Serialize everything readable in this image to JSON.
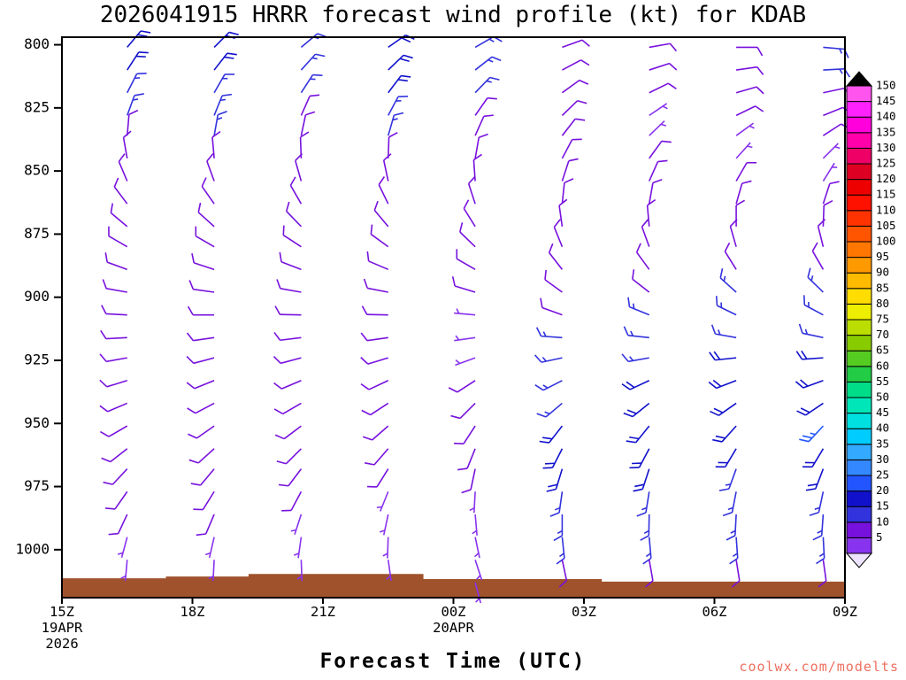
{
  "title": "2026041915 HRRR forecast wind profile (kt) for KDAB",
  "watermark": "coolwx.com/modelts",
  "chart_data": {
    "type": "wind_barb_profile",
    "title": "2026041915 HRRR forecast wind profile (kt) for KDAB",
    "xlabel": "Forecast Time (UTC)",
    "units": "kt",
    "x_axis": {
      "range_hours": [
        15,
        33
      ],
      "ticks": [
        {
          "hour": 15,
          "label": "15Z",
          "sub": [
            "19APR",
            "2026"
          ]
        },
        {
          "hour": 18,
          "label": "18Z"
        },
        {
          "hour": 21,
          "label": "21Z"
        },
        {
          "hour": 24,
          "label": "00Z",
          "sub": [
            "20APR"
          ]
        },
        {
          "hour": 27,
          "label": "03Z"
        },
        {
          "hour": 30,
          "label": "06Z"
        },
        {
          "hour": 33,
          "label": "09Z"
        }
      ]
    },
    "y_axis": {
      "range": [
        797,
        1019
      ],
      "ticks": [
        800,
        825,
        850,
        875,
        900,
        925,
        950,
        975,
        1000
      ]
    },
    "colorbar": {
      "values": [
        5,
        10,
        15,
        20,
        25,
        30,
        35,
        40,
        45,
        50,
        55,
        60,
        65,
        70,
        75,
        80,
        85,
        90,
        95,
        100,
        105,
        110,
        115,
        120,
        125,
        130,
        135,
        140,
        145,
        150
      ],
      "colors": [
        "#8833ee",
        "#7711dd",
        "#3333dd",
        "#1111cc",
        "#2255ff",
        "#3388ff",
        "#33aaff",
        "#00ccff",
        "#00e0e0",
        "#00e6b8",
        "#00dd88",
        "#22cc44",
        "#55cc22",
        "#88cc00",
        "#bbdd00",
        "#eeee00",
        "#ffdd00",
        "#ffbb00",
        "#ff9900",
        "#ff7700",
        "#ff5500",
        "#ff3300",
        "#ff1100",
        "#ee0000",
        "#dd0022",
        "#ee0066",
        "#ff00aa",
        "#ff00dd",
        "#ff22ff",
        "#ff55ee"
      ],
      "top_cap_color": "#000000",
      "bottom_cap_color": "#efe4ff"
    },
    "terrain": {
      "color": "#a0522d",
      "base_pressure": 1018.5,
      "steps": [
        [
          15,
          1011.5
        ],
        [
          17.4,
          1011.5
        ],
        [
          17.4,
          1010.8
        ],
        [
          19.3,
          1010.8
        ],
        [
          19.3,
          1009.8
        ],
        [
          23.3,
          1009.8
        ],
        [
          23.3,
          1011.8
        ],
        [
          27.4,
          1011.8
        ],
        [
          27.4,
          1012.8
        ],
        [
          33,
          1012.8
        ]
      ]
    },
    "barbs": {
      "pressure_levels": [
        801,
        810,
        819,
        828,
        836,
        845,
        854,
        863,
        872,
        880,
        889,
        898,
        907,
        916,
        924,
        933,
        942,
        951,
        960,
        968,
        977,
        986,
        995,
        1004
      ],
      "columns": [
        {
          "hour": 16.5,
          "spd": [
            20,
            20,
            15,
            15,
            10,
            10,
            10,
            10,
            10,
            10,
            10,
            10,
            10,
            10,
            10,
            10,
            10,
            10,
            10,
            10,
            10,
            10,
            5,
            5
          ],
          "dir": [
            40,
            33,
            27,
            20,
            5,
            350,
            337,
            323,
            310,
            300,
            290,
            280,
            273,
            267,
            260,
            253,
            247,
            240,
            232,
            223,
            215,
            205,
            195,
            185
          ]
        },
        {
          "hour": 18.5,
          "spd": [
            20,
            20,
            15,
            15,
            15,
            10,
            10,
            10,
            10,
            10,
            10,
            10,
            10,
            10,
            10,
            10,
            10,
            10,
            10,
            10,
            10,
            10,
            5,
            5
          ],
          "dir": [
            45,
            38,
            30,
            22,
            10,
            355,
            340,
            325,
            312,
            300,
            288,
            278,
            270,
            262,
            255,
            248,
            242,
            235,
            228,
            220,
            212,
            203,
            193,
            183
          ]
        },
        {
          "hour": 20.5,
          "spd": [
            15,
            15,
            15,
            10,
            10,
            10,
            10,
            10,
            10,
            10,
            10,
            10,
            10,
            10,
            10,
            10,
            10,
            10,
            10,
            10,
            10,
            5,
            5,
            5
          ],
          "dir": [
            50,
            42,
            33,
            24,
            12,
            358,
            344,
            330,
            316,
            303,
            291,
            280,
            271,
            263,
            255,
            247,
            240,
            233,
            225,
            217,
            208,
            198,
            188,
            178
          ]
        },
        {
          "hour": 22.5,
          "spd": [
            20,
            20,
            20,
            15,
            15,
            10,
            10,
            10,
            10,
            10,
            10,
            10,
            10,
            10,
            10,
            10,
            10,
            10,
            10,
            10,
            5,
            5,
            5,
            5
          ],
          "dir": [
            55,
            46,
            37,
            28,
            16,
            2,
            348,
            334,
            320,
            306,
            293,
            281,
            271,
            262,
            253,
            245,
            237,
            229,
            221,
            212,
            202,
            192,
            182,
            172
          ]
        },
        {
          "hour": 24.5,
          "spd": [
            15,
            15,
            15,
            10,
            10,
            10,
            10,
            10,
            10,
            10,
            10,
            10,
            5,
            5,
            5,
            10,
            10,
            10,
            10,
            10,
            5,
            5,
            5,
            5
          ],
          "dir": [
            60,
            52,
            44,
            35,
            24,
            10,
            356,
            342,
            328,
            314,
            300,
            287,
            275,
            262,
            250,
            237,
            225,
            213,
            202,
            192,
            183,
            175,
            168,
            162
          ],
          "extra": [
            {
              "p": 1013,
              "spd": 5,
              "dir": 165
            }
          ]
        },
        {
          "hour": 26.5,
          "spd": [
            10,
            10,
            10,
            10,
            10,
            10,
            10,
            10,
            10,
            10,
            10,
            10,
            10,
            15,
            15,
            15,
            15,
            20,
            20,
            20,
            15,
            15,
            15,
            10
          ],
          "dir": [
            70,
            62,
            54,
            46,
            38,
            28,
            18,
            6,
            352,
            338,
            322,
            306,
            290,
            274,
            258,
            243,
            230,
            218,
            207,
            197,
            188,
            180,
            174,
            168
          ]
        },
        {
          "hour": 28.5,
          "spd": [
            10,
            10,
            10,
            5,
            5,
            10,
            10,
            10,
            10,
            10,
            10,
            10,
            15,
            15,
            15,
            20,
            20,
            20,
            20,
            20,
            15,
            15,
            15,
            10
          ],
          "dir": [
            80,
            72,
            64,
            56,
            46,
            36,
            24,
            10,
            355,
            340,
            324,
            308,
            292,
            276,
            260,
            245,
            231,
            219,
            208,
            198,
            189,
            181,
            175,
            170
          ]
        },
        {
          "hour": 30.5,
          "spd": [
            10,
            10,
            10,
            10,
            5,
            5,
            10,
            10,
            10,
            10,
            10,
            15,
            15,
            15,
            20,
            20,
            20,
            20,
            20,
            15,
            15,
            15,
            15,
            10
          ],
          "dir": [
            90,
            82,
            74,
            64,
            54,
            42,
            30,
            16,
            0,
            344,
            328,
            312,
            296,
            280,
            264,
            249,
            235,
            222,
            211,
            200,
            191,
            183,
            176,
            171
          ]
        },
        {
          "hour": 32.5,
          "spd": [
            15,
            15,
            10,
            10,
            10,
            5,
            5,
            10,
            10,
            10,
            10,
            15,
            15,
            15,
            20,
            20,
            20,
            25,
            20,
            20,
            15,
            15,
            15,
            10
          ],
          "dir": [
            95,
            87,
            78,
            68,
            57,
            45,
            32,
            18,
            2,
            346,
            330,
            314,
            298,
            282,
            266,
            250,
            236,
            223,
            211,
            201,
            192,
            184,
            177,
            172
          ]
        }
      ]
    }
  }
}
